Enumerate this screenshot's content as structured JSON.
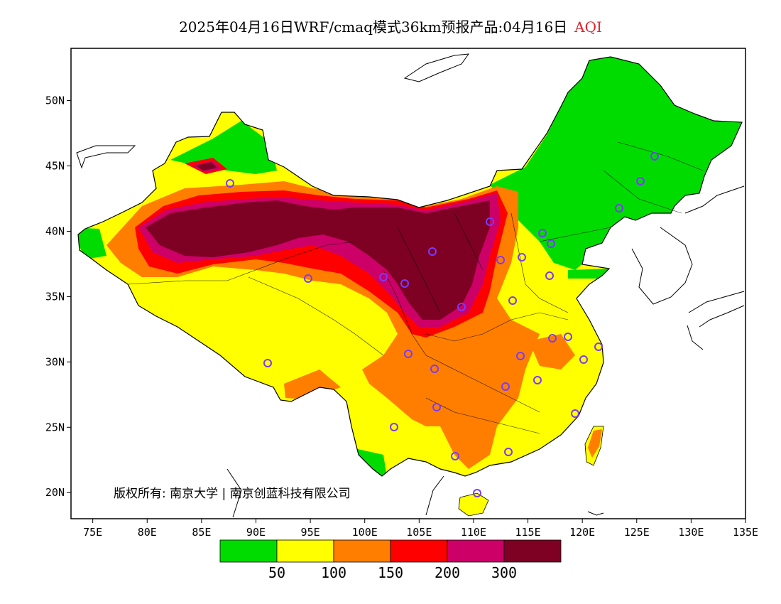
{
  "title": {
    "main": "2025年04月16日WRF/cmaq模式36km预报产品:04月16日",
    "variable": "AQI"
  },
  "copyright": "版权所有: 南京大学 | 南京创蓝科技有限公司",
  "axes": {
    "lon_range": [
      73,
      135
    ],
    "lat_range": [
      18,
      54
    ],
    "x_ticks": [
      "75E",
      "80E",
      "85E",
      "90E",
      "95E",
      "100E",
      "105E",
      "110E",
      "115E",
      "120E",
      "125E",
      "130E",
      "135E"
    ],
    "y_ticks": [
      "20N",
      "25N",
      "30N",
      "35N",
      "40N",
      "45N",
      "50N"
    ]
  },
  "legend": {
    "colors": [
      "#00dc00",
      "#ffff00",
      "#ff7e00",
      "#ff0000",
      "#cc0066",
      "#7e0023"
    ],
    "labels": [
      "50",
      "100",
      "150",
      "200",
      "300"
    ]
  }
}
